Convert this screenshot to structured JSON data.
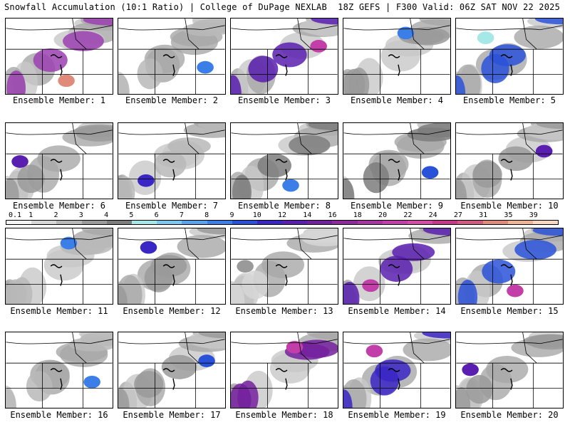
{
  "header": {
    "title_left": "Snowfall Accumulation (10:1 Ratio) | College of DuPage NEXLAB",
    "title_right": "18Z GEFS | F300 Valid: 06Z SAT NOV 22 2025"
  },
  "colorbar": {
    "ticks": [
      "0.1",
      "1",
      "2",
      "3",
      "4",
      "5",
      "6",
      "7",
      "8",
      "9",
      "10",
      "12",
      "14",
      "16",
      "18",
      "20",
      "22",
      "24",
      "27",
      "31",
      "35",
      "39"
    ],
    "colors": [
      "#f4f4f4",
      "#d6d6d6",
      "#b8b8b8",
      "#9a9a9a",
      "#7d7d7d",
      "#a6e8e8",
      "#7cc8ef",
      "#5aa4ee",
      "#3b7ee8",
      "#2a52d8",
      "#3a26c4",
      "#5a1fb0",
      "#74209e",
      "#8e2a9c",
      "#a834a0",
      "#c23ea8",
      "#d64aa8",
      "#c8388a",
      "#d05a80",
      "#e08a7a",
      "#f0b694",
      "#f8d8c0"
    ]
  },
  "panels": [
    {
      "label": "Ensemble Member: 1",
      "fill": "#9a3fb0",
      "accent": "#e08a7a"
    },
    {
      "label": "Ensemble Member: 2",
      "fill": "#b8b8b8",
      "accent": "#3b7ee8"
    },
    {
      "label": "Ensemble Member: 3",
      "fill": "#5a1fb0",
      "accent": "#c23ea8"
    },
    {
      "label": "Ensemble Member: 4",
      "fill": "#9a9a9a",
      "accent": "#3b7ee8"
    },
    {
      "label": "Ensemble Member: 5",
      "fill": "#2a52d8",
      "accent": "#a6e8e8"
    },
    {
      "label": "Ensemble Member: 6",
      "fill": "#9a9a9a",
      "accent": "#5a1fb0"
    },
    {
      "label": "Ensemble Member: 7",
      "fill": "#b8b8b8",
      "accent": "#3a26c4"
    },
    {
      "label": "Ensemble Member: 8",
      "fill": "#7d7d7d",
      "accent": "#3b7ee8"
    },
    {
      "label": "Ensemble Member: 9",
      "fill": "#7d7d7d",
      "accent": "#2a52d8"
    },
    {
      "label": "Ensemble Member: 10",
      "fill": "#9a9a9a",
      "accent": "#5a1fb0"
    },
    {
      "label": "Ensemble Member: 11",
      "fill": "#b8b8b8",
      "accent": "#3b7ee8"
    },
    {
      "label": "Ensemble Member: 12",
      "fill": "#9a9a9a",
      "accent": "#3a26c4"
    },
    {
      "label": "Ensemble Member: 13",
      "fill": "#d6d6d6",
      "accent": "#9a9a9a"
    },
    {
      "label": "Ensemble Member: 14",
      "fill": "#5a1fb0",
      "accent": "#c23ea8"
    },
    {
      "label": "Ensemble Member: 15",
      "fill": "#2a52d8",
      "accent": "#c23ea8"
    },
    {
      "label": "Ensemble Member: 16",
      "fill": "#b8b8b8",
      "accent": "#3b7ee8"
    },
    {
      "label": "Ensemble Member: 17",
      "fill": "#9a9a9a",
      "accent": "#2a52d8"
    },
    {
      "label": "Ensemble Member: 18",
      "fill": "#74209e",
      "accent": "#c23ea8"
    },
    {
      "label": "Ensemble Member: 19",
      "fill": "#3a26c4",
      "accent": "#c23ea8"
    },
    {
      "label": "Ensemble Member: 20",
      "fill": "#9a9a9a",
      "accent": "#5a1fb0"
    }
  ]
}
